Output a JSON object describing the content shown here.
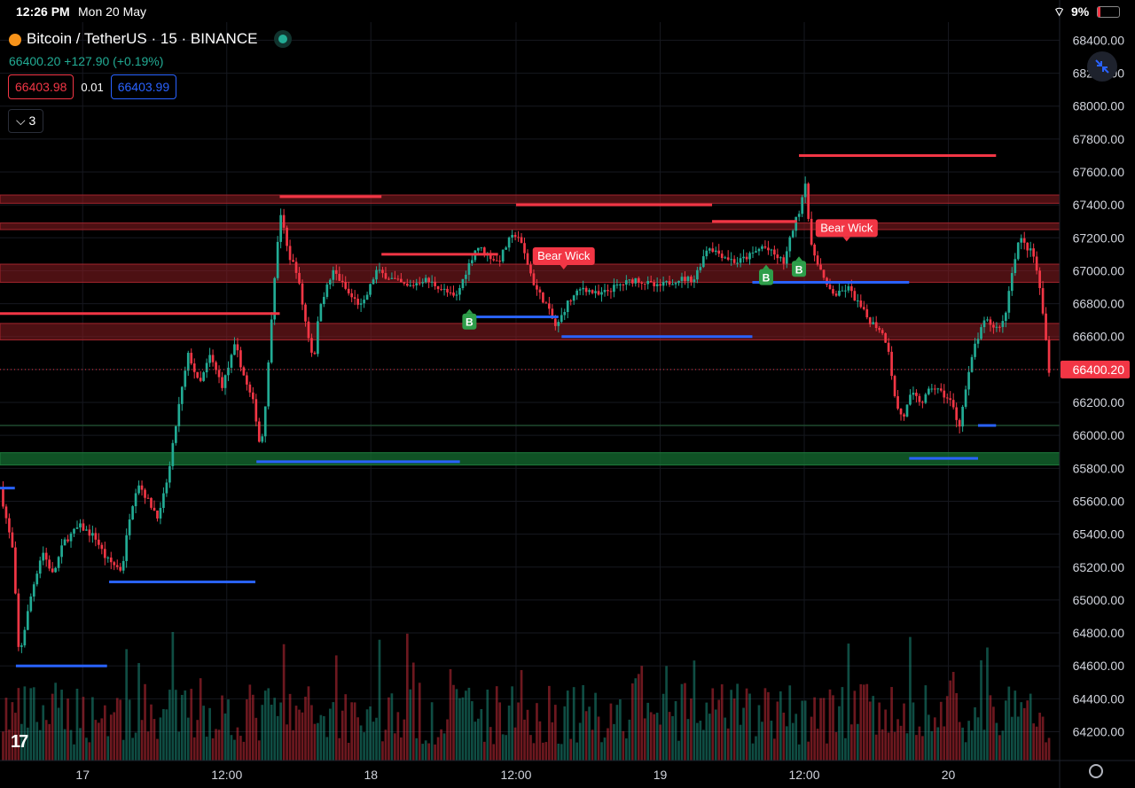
{
  "status_bar": {
    "time": "12:26 PM",
    "date": "Mon 20 May",
    "battery": "9%"
  },
  "legend": {
    "symbol": "Bitcoin / TetherUS · 15 · BINANCE",
    "last": "66400.20",
    "change": "+127.90 (+0.19%)",
    "sell_price": "66403.98",
    "spread": "0.01",
    "buy_price": "66403.99",
    "indicators_count": "3"
  },
  "icons": {
    "coin": "bitcoin-icon",
    "live": "live-dot-icon",
    "fullscreen": "collapse-arrows-icon",
    "settings": "gear-icon",
    "logo": "tradingview-logo-icon",
    "wifi": "wifi-icon",
    "battery": "battery-icon"
  },
  "colors": {
    "up": "#22ab94",
    "down": "#f23645",
    "support_line": "#2962ff",
    "resistance_line": "#f23645",
    "background": "#000000"
  },
  "chart_data": {
    "type": "candlestick",
    "symbol": "Bitcoin / TetherUS",
    "interval": "15",
    "exchange": "BINANCE",
    "ylim": [
      64000,
      68450
    ],
    "y_ticks": [
      68400,
      68200,
      68000,
      67800,
      67600,
      67400,
      67200,
      67000,
      66800,
      66600,
      66400,
      66200,
      66000,
      65800,
      65600,
      65400,
      65200,
      65000,
      64800,
      64600,
      64400,
      64200
    ],
    "y_tick_labels": [
      "68400.00",
      "68200.00",
      "68000.00",
      "67800.00",
      "67600.00",
      "67400.00",
      "67200.00",
      "67000.00",
      "66800.00",
      "66600.00",
      "66400.00",
      "66200.00",
      "66000.00",
      "65800.00",
      "65600.00",
      "65400.00",
      "65200.00",
      "65000.00",
      "64800.00",
      "64600.00",
      "64400.00",
      "64200.00"
    ],
    "x_ticks": [
      {
        "label": "17",
        "t": 0.078
      },
      {
        "label": "12:00",
        "t": 0.214
      },
      {
        "label": "18",
        "t": 0.35
      },
      {
        "label": "12:00",
        "t": 0.487
      },
      {
        "label": "19",
        "t": 0.623
      },
      {
        "label": "12:00",
        "t": 0.759
      },
      {
        "label": "20",
        "t": 0.895
      }
    ],
    "last_price": 66400.2,
    "last_price_label": "66400.20",
    "price_path": [
      [
        0.0,
        65680
      ],
      [
        0.012,
        65300
      ],
      [
        0.018,
        64650
      ],
      [
        0.03,
        65050
      ],
      [
        0.04,
        65300
      ],
      [
        0.05,
        65150
      ],
      [
        0.06,
        65350
      ],
      [
        0.075,
        65450
      ],
      [
        0.09,
        65380
      ],
      [
        0.1,
        65250
      ],
      [
        0.115,
        65180
      ],
      [
        0.122,
        65500
      ],
      [
        0.13,
        65720
      ],
      [
        0.14,
        65600
      ],
      [
        0.15,
        65500
      ],
      [
        0.16,
        65800
      ],
      [
        0.168,
        66150
      ],
      [
        0.178,
        66500
      ],
      [
        0.188,
        66300
      ],
      [
        0.198,
        66480
      ],
      [
        0.21,
        66300
      ],
      [
        0.222,
        66550
      ],
      [
        0.232,
        66320
      ],
      [
        0.24,
        66180
      ],
      [
        0.246,
        65900
      ],
      [
        0.252,
        66300
      ],
      [
        0.258,
        66900
      ],
      [
        0.265,
        67350
      ],
      [
        0.272,
        67100
      ],
      [
        0.28,
        67000
      ],
      [
        0.288,
        66700
      ],
      [
        0.296,
        66450
      ],
      [
        0.302,
        66800
      ],
      [
        0.315,
        67000
      ],
      [
        0.33,
        66850
      ],
      [
        0.342,
        66780
      ],
      [
        0.355,
        67000
      ],
      [
        0.37,
        66950
      ],
      [
        0.385,
        66900
      ],
      [
        0.4,
        66950
      ],
      [
        0.415,
        66900
      ],
      [
        0.43,
        66830
      ],
      [
        0.44,
        67000
      ],
      [
        0.45,
        67150
      ],
      [
        0.46,
        67100
      ],
      [
        0.47,
        67050
      ],
      [
        0.48,
        67180
      ],
      [
        0.488,
        67230
      ],
      [
        0.495,
        67100
      ],
      [
        0.505,
        66900
      ],
      [
        0.515,
        66800
      ],
      [
        0.525,
        66650
      ],
      [
        0.535,
        66800
      ],
      [
        0.55,
        66900
      ],
      [
        0.565,
        66850
      ],
      [
        0.58,
        66900
      ],
      [
        0.6,
        66950
      ],
      [
        0.62,
        66900
      ],
      [
        0.64,
        66950
      ],
      [
        0.655,
        66950
      ],
      [
        0.668,
        67150
      ],
      [
        0.68,
        67100
      ],
      [
        0.695,
        67050
      ],
      [
        0.71,
        67100
      ],
      [
        0.72,
        67150
      ],
      [
        0.73,
        67100
      ],
      [
        0.74,
        67050
      ],
      [
        0.748,
        67250
      ],
      [
        0.755,
        67380
      ],
      [
        0.76,
        67550
      ],
      [
        0.765,
        67150
      ],
      [
        0.772,
        67050
      ],
      [
        0.78,
        66900
      ],
      [
        0.79,
        66850
      ],
      [
        0.8,
        66900
      ],
      [
        0.81,
        66800
      ],
      [
        0.82,
        66700
      ],
      [
        0.83,
        66650
      ],
      [
        0.838,
        66550
      ],
      [
        0.845,
        66200
      ],
      [
        0.852,
        66100
      ],
      [
        0.86,
        66250
      ],
      [
        0.87,
        66200
      ],
      [
        0.88,
        66300
      ],
      [
        0.89,
        66250
      ],
      [
        0.898,
        66200
      ],
      [
        0.905,
        66050
      ],
      [
        0.912,
        66300
      ],
      [
        0.92,
        66550
      ],
      [
        0.93,
        66700
      ],
      [
        0.94,
        66650
      ],
      [
        0.948,
        66700
      ],
      [
        0.955,
        67000
      ],
      [
        0.962,
        67200
      ],
      [
        0.968,
        67150
      ],
      [
        0.975,
        67100
      ],
      [
        0.98,
        66950
      ],
      [
        0.985,
        66700
      ],
      [
        0.99,
        66400
      ]
    ],
    "zones": [
      {
        "low": 67410,
        "high": 67460,
        "kind": "resistance"
      },
      {
        "low": 67250,
        "high": 67290,
        "kind": "resistance"
      },
      {
        "low": 66930,
        "high": 67040,
        "kind": "resistance"
      },
      {
        "low": 66580,
        "high": 66680,
        "kind": "resistance"
      },
      {
        "low": 65820,
        "high": 65895,
        "kind": "support"
      }
    ],
    "thin_levels": [
      {
        "price": 66060,
        "color": "#1f4a2f"
      }
    ],
    "levels": [
      {
        "price": 67450,
        "from": 0.264,
        "to": 0.36,
        "color": "#f23645"
      },
      {
        "price": 67100,
        "from": 0.36,
        "to": 0.47,
        "color": "#f23645"
      },
      {
        "price": 67400,
        "from": 0.487,
        "to": 0.672,
        "color": "#f23645"
      },
      {
        "price": 67300,
        "from": 0.672,
        "to": 0.752,
        "color": "#f23645"
      },
      {
        "price": 67700,
        "from": 0.754,
        "to": 0.94,
        "color": "#f23645"
      },
      {
        "price": 66740,
        "from": 0.0,
        "to": 0.264,
        "color": "#f23645"
      },
      {
        "price": 66720,
        "from": 0.44,
        "to": 0.527,
        "color": "#2962ff"
      },
      {
        "price": 66600,
        "from": 0.53,
        "to": 0.71,
        "color": "#2962ff"
      },
      {
        "price": 66930,
        "from": 0.71,
        "to": 0.858,
        "color": "#2962ff"
      },
      {
        "price": 65840,
        "from": 0.242,
        "to": 0.434,
        "color": "#2962ff"
      },
      {
        "price": 65110,
        "from": 0.103,
        "to": 0.241,
        "color": "#2962ff"
      },
      {
        "price": 64600,
        "from": 0.015,
        "to": 0.101,
        "color": "#2962ff"
      },
      {
        "price": 65680,
        "from": 0.0,
        "to": 0.014,
        "color": "#2962ff"
      },
      {
        "price": 65860,
        "from": 0.858,
        "to": 0.923,
        "color": "#2962ff"
      },
      {
        "price": 66060,
        "from": 0.923,
        "to": 0.94,
        "color": "#2962ff"
      }
    ],
    "annotations": [
      {
        "text": "Bear Wick",
        "t": 0.532,
        "price": 67035,
        "kind": "bear"
      },
      {
        "text": "Bear Wick",
        "t": 0.799,
        "price": 67205,
        "kind": "bear"
      },
      {
        "text": "B",
        "t": 0.443,
        "price": 66740,
        "kind": "buy"
      },
      {
        "text": "B",
        "t": 0.723,
        "price": 67010,
        "kind": "buy"
      },
      {
        "text": "B",
        "t": 0.754,
        "price": 67060,
        "kind": "buy"
      }
    ]
  }
}
